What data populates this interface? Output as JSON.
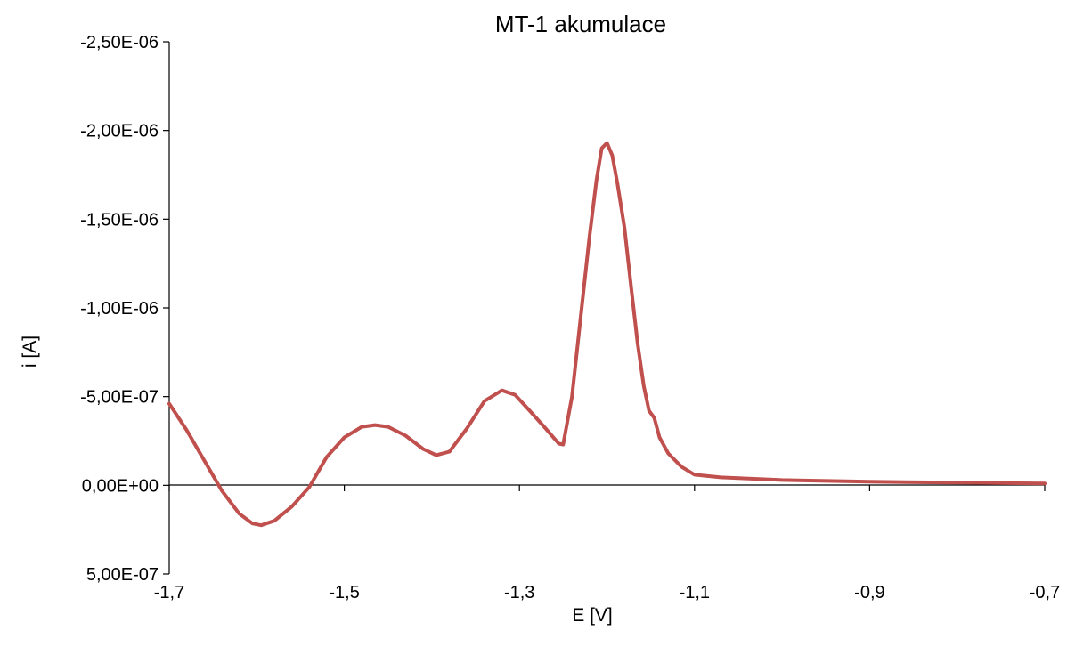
{
  "chart_data": {
    "type": "line",
    "title": "MT-1 akumulace",
    "xlabel": "E [V]",
    "ylabel": "i [A]",
    "xlim": [
      -1.7,
      -0.7
    ],
    "ylim": [
      5e-07,
      -2.5e-06
    ],
    "y_axis_reversed": true,
    "grid": false,
    "legend": "none",
    "x_ticks": [
      {
        "value": -1.7,
        "label": "-1,7"
      },
      {
        "value": -1.5,
        "label": "-1,5"
      },
      {
        "value": -1.3,
        "label": "-1,3"
      },
      {
        "value": -1.1,
        "label": "-1,1"
      },
      {
        "value": -0.9,
        "label": "-0,9"
      },
      {
        "value": -0.7,
        "label": "-0,7"
      }
    ],
    "y_ticks": [
      {
        "value": -2.5e-06,
        "label": "-2,50E-06"
      },
      {
        "value": -2e-06,
        "label": "-2,00E-06"
      },
      {
        "value": -1.5e-06,
        "label": "-1,50E-06"
      },
      {
        "value": -1e-06,
        "label": "-1,00E-06"
      },
      {
        "value": -5e-07,
        "label": "-5,00E-07"
      },
      {
        "value": 0,
        "label": "0,00E+00"
      },
      {
        "value": 5e-07,
        "label": "5,00E-07"
      }
    ],
    "series": [
      {
        "color": "#c0504d",
        "points": [
          [
            -1.7,
            -4.6e-07
          ],
          [
            -1.68,
            -3.1e-07
          ],
          [
            -1.66,
            -1.4e-07
          ],
          [
            -1.64,
            3e-08
          ],
          [
            -1.62,
            1.6e-07
          ],
          [
            -1.605,
            2.15e-07
          ],
          [
            -1.595,
            2.25e-07
          ],
          [
            -1.58,
            2e-07
          ],
          [
            -1.56,
            1.2e-07
          ],
          [
            -1.54,
            1e-08
          ],
          [
            -1.52,
            -1.6e-07
          ],
          [
            -1.5,
            -2.7e-07
          ],
          [
            -1.48,
            -3.3e-07
          ],
          [
            -1.465,
            -3.4e-07
          ],
          [
            -1.45,
            -3.3e-07
          ],
          [
            -1.43,
            -2.8e-07
          ],
          [
            -1.41,
            -2.05e-07
          ],
          [
            -1.395,
            -1.7e-07
          ],
          [
            -1.38,
            -1.9e-07
          ],
          [
            -1.36,
            -3.2e-07
          ],
          [
            -1.34,
            -4.75e-07
          ],
          [
            -1.32,
            -5.35e-07
          ],
          [
            -1.305,
            -5.1e-07
          ],
          [
            -1.29,
            -4.3e-07
          ],
          [
            -1.27,
            -3.2e-07
          ],
          [
            -1.255,
            -2.35e-07
          ],
          [
            -1.25,
            -2.3e-07
          ],
          [
            -1.24,
            -5e-07
          ],
          [
            -1.23,
            -9.5e-07
          ],
          [
            -1.22,
            -1.4e-06
          ],
          [
            -1.212,
            -1.72e-06
          ],
          [
            -1.206,
            -1.9e-06
          ],
          [
            -1.2,
            -1.93e-06
          ],
          [
            -1.194,
            -1.86e-06
          ],
          [
            -1.188,
            -1.7e-06
          ],
          [
            -1.18,
            -1.45e-06
          ],
          [
            -1.172,
            -1.1e-06
          ],
          [
            -1.165,
            -8e-07
          ],
          [
            -1.158,
            -5.6e-07
          ],
          [
            -1.152,
            -4.2e-07
          ],
          [
            -1.146,
            -3.8e-07
          ],
          [
            -1.14,
            -2.7e-07
          ],
          [
            -1.13,
            -1.8e-07
          ],
          [
            -1.115,
            -1.05e-07
          ],
          [
            -1.1,
            -6e-08
          ],
          [
            -1.07,
            -4.5e-08
          ],
          [
            -1.0,
            -3e-08
          ],
          [
            -0.9,
            -2e-08
          ],
          [
            -0.8,
            -1.5e-08
          ],
          [
            -0.7,
            -1e-08
          ]
        ]
      }
    ]
  }
}
